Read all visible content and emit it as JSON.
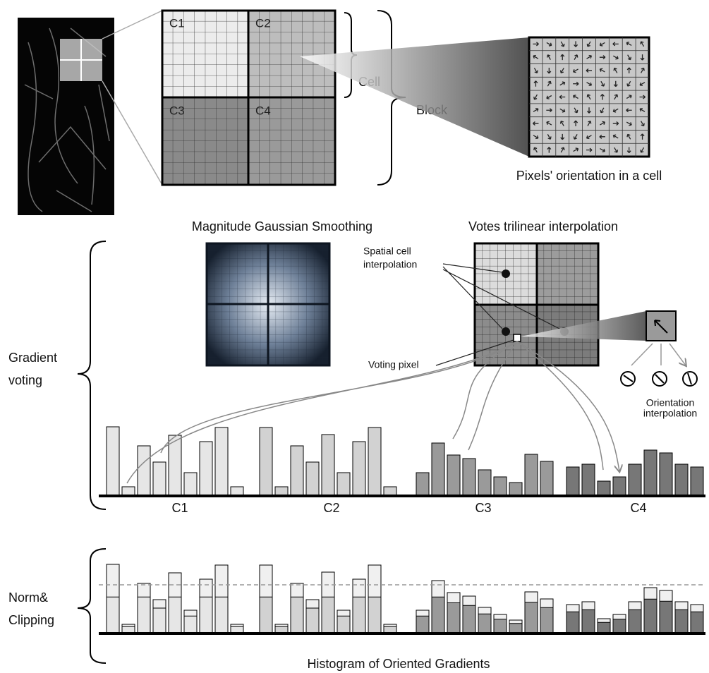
{
  "block_diagram": {
    "cell_labels": [
      "C1",
      "C2",
      "C3",
      "C4"
    ],
    "cell": "Cell",
    "block": "Block",
    "pixel_caption": "Pixels' orientation in a cell"
  },
  "gaussian": {
    "title": "Magnitude Gaussian Smoothing"
  },
  "votes": {
    "title": "Votes trilinear interpolation",
    "spatial": [
      "Spatial cell",
      "interpolation"
    ],
    "voting_pixel": "Voting pixel",
    "orientation": [
      "Orientation",
      "interpolation"
    ]
  },
  "gradient_voting": {
    "label": [
      "Gradient",
      "voting"
    ],
    "histogram_labels": [
      "C1",
      "C2",
      "C3",
      "C4"
    ]
  },
  "norm": {
    "label": [
      "Norm&",
      "Clipping"
    ],
    "caption": "Histogram of Oriented Gradients"
  }
}
